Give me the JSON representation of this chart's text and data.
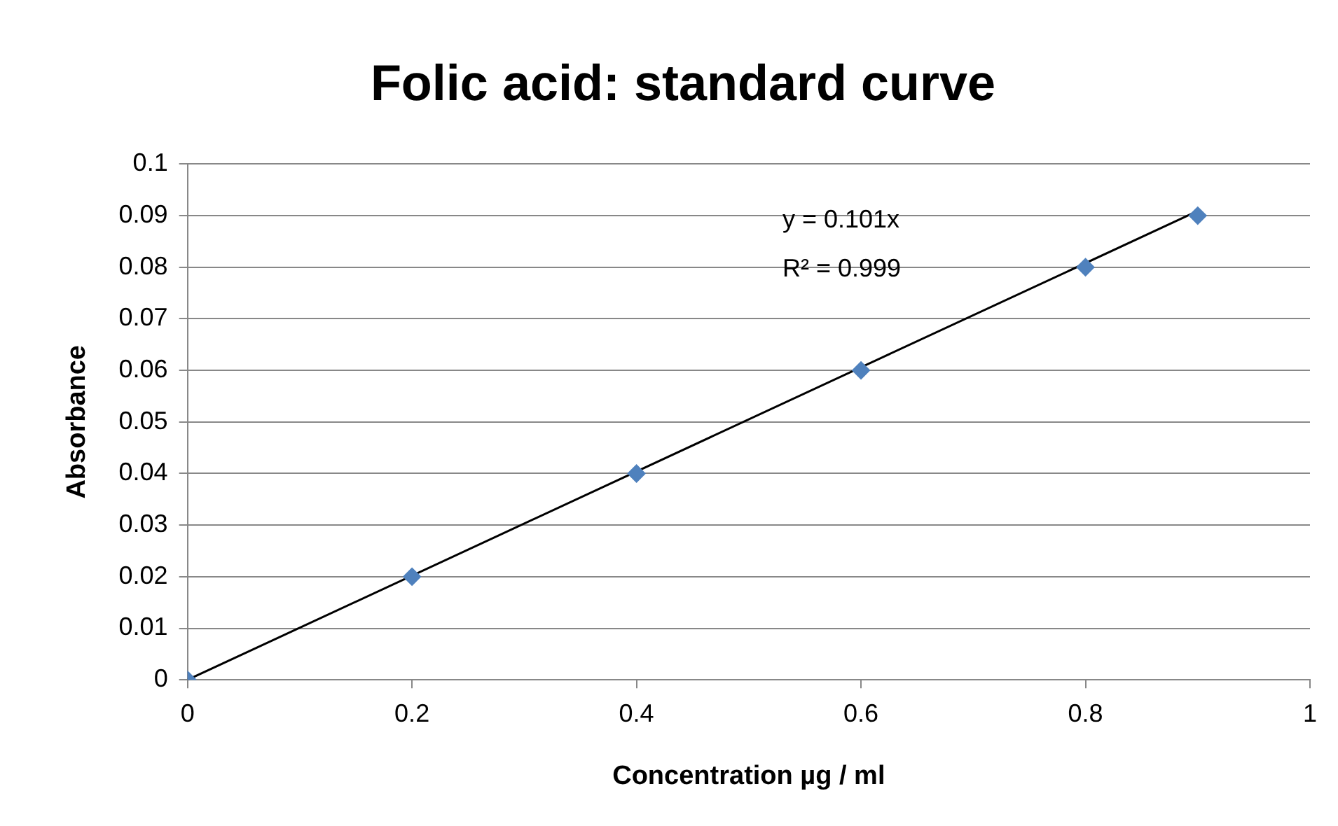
{
  "chart_data": {
    "type": "scatter",
    "title": "Folic acid: standard curve",
    "xlabel": "Concentration µg / ml",
    "ylabel": "Absorbance",
    "series": [
      {
        "color": "#4f81bd",
        "x": [
          0,
          0.2,
          0.4,
          0.6,
          0.8,
          0.9
        ],
        "values": [
          0,
          0.02,
          0.04,
          0.06,
          0.08,
          0.09
        ]
      },
      {
        "type": "line",
        "color": "#000000",
        "marker": "none",
        "x": [
          0,
          0.9
        ],
        "values": [
          0,
          0.0909
        ]
      }
    ],
    "xlim": [
      0,
      1
    ],
    "xticks": [
      0,
      0.2,
      0.4,
      0.6,
      0.8,
      1
    ],
    "ylim": [
      0,
      0.1
    ],
    "yticks": [
      0,
      0.01,
      0.02,
      0.03,
      0.04,
      0.05,
      0.06,
      0.07,
      0.08,
      0.09,
      0.1
    ],
    "annotations": [
      "y = 0.101x",
      "R² = 0.999"
    ],
    "grid": "y",
    "legend": false,
    "marker": "diamond"
  }
}
